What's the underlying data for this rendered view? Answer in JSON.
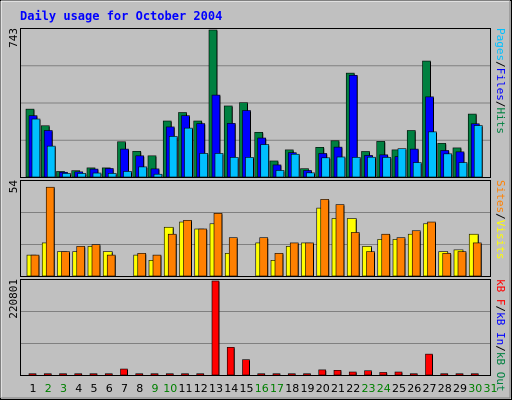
{
  "chart_data": [
    {
      "type": "bar",
      "title": "Daily usage for October 2004",
      "categories": [
        "1",
        "2",
        "3",
        "4",
        "5",
        "6",
        "7",
        "8",
        "9",
        "10",
        "11",
        "12",
        "13",
        "14",
        "15",
        "16",
        "17",
        "18",
        "19",
        "20",
        "21",
        "22",
        "23",
        "24",
        "25",
        "26",
        "27",
        "28",
        "29",
        "30",
        "31"
      ],
      "weekend_days": [
        "2",
        "3",
        "9",
        "10",
        "16",
        "17",
        "23",
        "24",
        "30",
        "31"
      ],
      "ylim": [
        0,
        743
      ],
      "y_tick_label": "743",
      "right_axis_labels": [
        "Pages",
        "/",
        "Files",
        "/",
        "Hits"
      ],
      "series": [
        {
          "name": "Hits",
          "color": "#008040",
          "values": [
            343,
            259,
            28,
            32,
            46,
            46,
            178,
            130,
            107,
            283,
            326,
            283,
            743,
            359,
            376,
            226,
            81,
            137,
            42,
            150,
            183,
            525,
            129,
            180,
            137,
            235,
            586,
            170,
            147,
            318,
            0
          ]
        },
        {
          "name": "Files",
          "color": "#0000ff",
          "values": [
            310,
            235,
            24,
            26,
            40,
            43,
            141,
            107,
            41,
            253,
            310,
            270,
            414,
            271,
            336,
            197,
            61,
            123,
            33,
            119,
            151,
            514,
            109,
            112,
            103,
            141,
            405,
            134,
            127,
            269,
            0
          ]
        },
        {
          "name": "Pages",
          "color": "#00c0ff",
          "values": [
            293,
            156,
            18,
            18,
            20,
            18,
            28,
            51,
            14,
            205,
            247,
            119,
            119,
            99,
            99,
            164,
            33,
            115,
            21,
            97,
            101,
            99,
            100,
            99,
            143,
            73,
            228,
            117,
            73,
            260,
            0
          ]
        }
      ]
    },
    {
      "type": "bar",
      "ylim": [
        0,
        54
      ],
      "y_tick_label": "54",
      "right_axis_labels": [
        "Sites",
        "/",
        "Visits"
      ],
      "series": [
        {
          "name": "Visits",
          "color": "#ffff00",
          "values": [
            12,
            19,
            14,
            14,
            17,
            14,
            0,
            12,
            9,
            28,
            31,
            27,
            30,
            13,
            0,
            19,
            9,
            17,
            19,
            39,
            33,
            33,
            17,
            21,
            21,
            24,
            30,
            14,
            15,
            24,
            0
          ]
        },
        {
          "name": "Sites",
          "color": "#ff8000",
          "values": [
            12,
            51,
            14,
            17,
            18,
            12,
            0,
            13,
            12,
            24,
            32,
            27,
            36,
            22,
            0,
            22,
            13,
            19,
            19,
            44,
            41,
            25,
            14,
            24,
            22,
            26,
            31,
            13,
            14,
            19,
            0
          ]
        }
      ]
    },
    {
      "type": "bar",
      "ylim": [
        0,
        220801
      ],
      "y_tick_label": "220801",
      "right_axis_labels": [
        "kB F",
        "/",
        "kB In",
        "/",
        "kB Out"
      ],
      "series": [
        {
          "name": "kB F",
          "color": "#ff0000",
          "values": [
            3000,
            3000,
            3000,
            3000,
            3000,
            3000,
            14000,
            3000,
            3000,
            3000,
            3000,
            3000,
            220801,
            65000,
            36000,
            3000,
            3000,
            3000,
            3000,
            12000,
            11000,
            7000,
            10000,
            6000,
            7000,
            3000,
            49000,
            3000,
            3000,
            3000,
            0
          ]
        }
      ]
    }
  ],
  "x_labels": [
    "1",
    "2",
    "3",
    "4",
    "5",
    "6",
    "7",
    "8",
    "9",
    "10",
    "11",
    "12",
    "13",
    "14",
    "15",
    "16",
    "17",
    "18",
    "19",
    "20",
    "21",
    "22",
    "23",
    "24",
    "25",
    "26",
    "27",
    "28",
    "29",
    "30",
    "31"
  ],
  "colors": {
    "title": "#0000ff",
    "weekday_label": "#000000",
    "weekend_label": "#008000",
    "panel_bg": "#c0c0c0",
    "frame": "#000000",
    "hits": "#008040",
    "files": "#0000ff",
    "pages": "#00c0ff",
    "visits": "#ffff00",
    "sites": "#ff8000",
    "kbf": "#ff0000",
    "kbin": "#0000ff",
    "kbout": "#008040"
  }
}
